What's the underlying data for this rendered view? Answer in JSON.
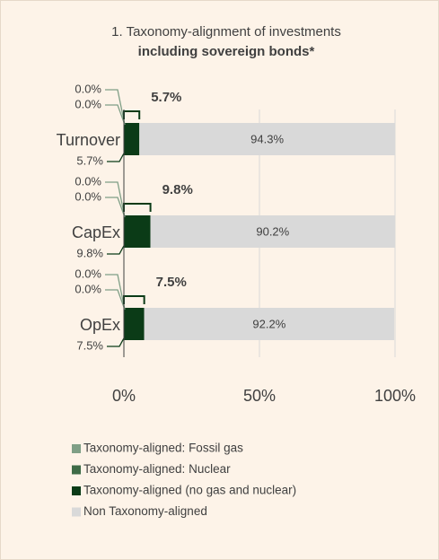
{
  "chart_data": {
    "type": "stacked-barh",
    "title": "1. Taxonomy-alignment of investments",
    "subtitle": "including sovereign bonds*",
    "categories": [
      "Turnover",
      "CapEx",
      "OpEx"
    ],
    "series": [
      {
        "name": "Taxonomy-aligned: Fossil gas",
        "color": "#7f9f86",
        "values": [
          0,
          0,
          0
        ],
        "value_labels": [
          "0.0%",
          "0.0%",
          "0.0%"
        ]
      },
      {
        "name": "Taxonomy-aligned: Nuclear",
        "color": "#3e6b47",
        "values": [
          0,
          0,
          0
        ],
        "value_labels": [
          "0.0%",
          "0.0%",
          "0.0%"
        ]
      },
      {
        "name": "Taxonomy-aligned (no gas and nuclear)",
        "color": "#0b3b17",
        "values": [
          5.7,
          9.8,
          7.5
        ],
        "value_labels": [
          "5.7%",
          "9.8%",
          "7.5%"
        ]
      },
      {
        "name": "Non Taxonomy-aligned",
        "color": "#d9d9d9",
        "values": [
          94.3,
          90.2,
          92.2
        ],
        "value_labels": [
          "94.3%",
          "90.2%",
          "92.2%"
        ]
      }
    ],
    "annotations": [
      "5.7%",
      "9.8%",
      "7.5%"
    ],
    "xlim": [
      0,
      100
    ],
    "xticks": [
      {
        "value": 0,
        "label": "0%"
      },
      {
        "value": 50,
        "label": "50%"
      },
      {
        "value": 100,
        "label": "100%"
      }
    ],
    "grid": true
  }
}
